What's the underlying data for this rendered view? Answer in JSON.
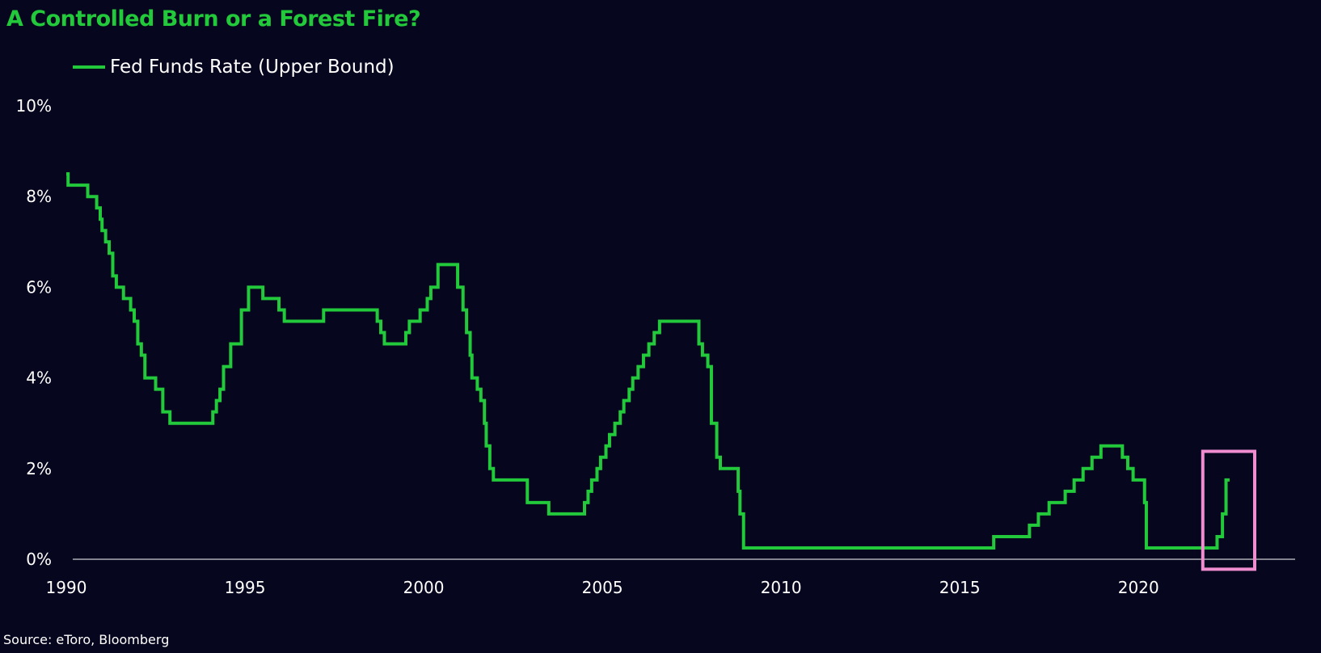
{
  "colors": {
    "background": "#07061f",
    "line": "#22c93a",
    "title": "#22c93a",
    "axis": "#ffffff",
    "highlight": "#f08cd0"
  },
  "source": "Source: eToro, Bloomberg",
  "chart_data": {
    "type": "line",
    "title": "A Controlled Burn or a Forest Fire?",
    "xlabel": "",
    "ylabel": "",
    "xlim": [
      1990,
      2022.8
    ],
    "ylim": [
      0,
      10
    ],
    "x_ticks": [
      1990,
      1995,
      2000,
      2005,
      2010,
      2015,
      2020
    ],
    "y_ticks": [
      "0%",
      "2%",
      "4%",
      "6%",
      "8%",
      "10%"
    ],
    "y_tick_values": [
      0,
      2,
      4,
      6,
      8,
      10
    ],
    "grid": false,
    "legend_position": "top-left",
    "series": [
      {
        "name": "Fed Funds Rate (Upper Bound)",
        "step": true,
        "points": [
          [
            1990.0,
            8.5
          ],
          [
            1990.05,
            8.25
          ],
          [
            1990.6,
            8.0
          ],
          [
            1990.85,
            7.75
          ],
          [
            1990.95,
            7.5
          ],
          [
            1991.0,
            7.25
          ],
          [
            1991.1,
            7.0
          ],
          [
            1991.2,
            6.75
          ],
          [
            1991.3,
            6.25
          ],
          [
            1991.4,
            6.0
          ],
          [
            1991.6,
            5.75
          ],
          [
            1991.8,
            5.5
          ],
          [
            1991.9,
            5.25
          ],
          [
            1992.0,
            4.75
          ],
          [
            1992.1,
            4.5
          ],
          [
            1992.2,
            4.0
          ],
          [
            1992.5,
            3.75
          ],
          [
            1992.7,
            3.25
          ],
          [
            1992.9,
            3.0
          ],
          [
            1994.1,
            3.25
          ],
          [
            1994.2,
            3.5
          ],
          [
            1994.3,
            3.75
          ],
          [
            1994.4,
            4.25
          ],
          [
            1994.6,
            4.75
          ],
          [
            1994.9,
            5.5
          ],
          [
            1995.1,
            6.0
          ],
          [
            1995.5,
            5.75
          ],
          [
            1995.95,
            5.5
          ],
          [
            1996.1,
            5.25
          ],
          [
            1997.2,
            5.5
          ],
          [
            1998.7,
            5.25
          ],
          [
            1998.8,
            5.0
          ],
          [
            1998.9,
            4.75
          ],
          [
            1999.5,
            5.0
          ],
          [
            1999.6,
            5.25
          ],
          [
            1999.9,
            5.5
          ],
          [
            2000.1,
            5.75
          ],
          [
            2000.2,
            6.0
          ],
          [
            2000.4,
            6.5
          ],
          [
            2000.95,
            6.0
          ],
          [
            2001.1,
            5.5
          ],
          [
            2001.2,
            5.0
          ],
          [
            2001.3,
            4.5
          ],
          [
            2001.35,
            4.0
          ],
          [
            2001.5,
            3.75
          ],
          [
            2001.6,
            3.5
          ],
          [
            2001.7,
            3.0
          ],
          [
            2001.75,
            2.5
          ],
          [
            2001.85,
            2.0
          ],
          [
            2001.95,
            1.75
          ],
          [
            2002.9,
            1.25
          ],
          [
            2003.5,
            1.0
          ],
          [
            2004.5,
            1.25
          ],
          [
            2004.6,
            1.5
          ],
          [
            2004.7,
            1.75
          ],
          [
            2004.85,
            2.0
          ],
          [
            2004.95,
            2.25
          ],
          [
            2005.1,
            2.5
          ],
          [
            2005.2,
            2.75
          ],
          [
            2005.35,
            3.0
          ],
          [
            2005.5,
            3.25
          ],
          [
            2005.6,
            3.5
          ],
          [
            2005.75,
            3.75
          ],
          [
            2005.85,
            4.0
          ],
          [
            2006.0,
            4.25
          ],
          [
            2006.15,
            4.5
          ],
          [
            2006.3,
            4.75
          ],
          [
            2006.45,
            5.0
          ],
          [
            2006.6,
            5.25
          ],
          [
            2007.7,
            4.75
          ],
          [
            2007.8,
            4.5
          ],
          [
            2007.95,
            4.25
          ],
          [
            2008.05,
            3.0
          ],
          [
            2008.2,
            2.25
          ],
          [
            2008.3,
            2.0
          ],
          [
            2008.8,
            1.5
          ],
          [
            2008.85,
            1.0
          ],
          [
            2008.95,
            0.25
          ],
          [
            2015.95,
            0.5
          ],
          [
            2016.95,
            0.75
          ],
          [
            2017.2,
            1.0
          ],
          [
            2017.5,
            1.25
          ],
          [
            2017.95,
            1.5
          ],
          [
            2018.2,
            1.75
          ],
          [
            2018.45,
            2.0
          ],
          [
            2018.7,
            2.25
          ],
          [
            2018.95,
            2.5
          ],
          [
            2019.55,
            2.25
          ],
          [
            2019.7,
            2.0
          ],
          [
            2019.85,
            1.75
          ],
          [
            2020.17,
            1.25
          ],
          [
            2020.22,
            0.25
          ],
          [
            2022.2,
            0.5
          ],
          [
            2022.35,
            1.0
          ],
          [
            2022.45,
            1.75
          ],
          [
            2022.55,
            1.75
          ]
        ]
      }
    ],
    "highlight_box": {
      "x_range": [
        2021.8,
        2022.8
      ],
      "y_range": [
        -0.22,
        2.38
      ]
    }
  }
}
